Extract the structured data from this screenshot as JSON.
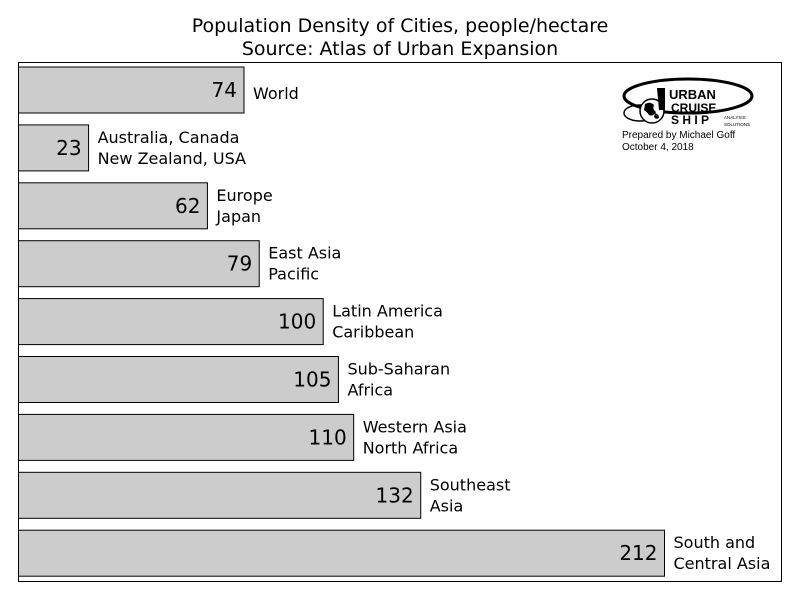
{
  "chart_data": {
    "type": "bar",
    "orientation": "horizontal",
    "title": "Population Density of Cities, people/hectare",
    "subtitle": "Source: Atlas of Urban Expansion",
    "categories": [
      [
        "World"
      ],
      [
        "Australia, Canada",
        "New Zealand, USA"
      ],
      [
        "Europe",
        "Japan"
      ],
      [
        "East Asia",
        "Pacific"
      ],
      [
        "Latin America",
        "Caribbean"
      ],
      [
        "Sub-Saharan",
        "Africa"
      ],
      [
        "Western Asia",
        "North Africa"
      ],
      [
        "Southeast",
        "Asia"
      ],
      [
        "South and",
        "Central Asia"
      ]
    ],
    "values": [
      74,
      23,
      62,
      79,
      100,
      105,
      110,
      132,
      212
    ],
    "data_labels": [
      "74",
      "23",
      "62",
      "79",
      "100",
      "105",
      "110",
      "132",
      "212"
    ],
    "xlim": [
      0,
      250
    ],
    "grid": false,
    "colors": {
      "bar_fill": "#cccccc",
      "bar_edge": "#000000"
    }
  },
  "logo": {
    "words": [
      "URBAN",
      "CRUISE",
      "S H I P",
      "ANALYSIS",
      "SOLUTIONS"
    ],
    "prepared_by": "Prepared by Michael Goff",
    "date": "October 4, 2018"
  }
}
